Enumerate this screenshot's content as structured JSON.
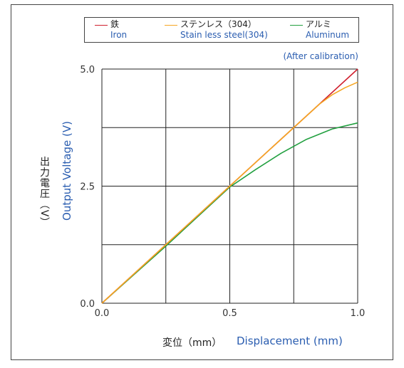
{
  "chart_data": {
    "type": "line",
    "xlabel_jp": "変位（mm）",
    "xlabel_en": "Displacement (mm)",
    "ylabel_jp": "出力電圧（V）",
    "ylabel_en": "Output Voltage (V)",
    "note": "(After calibration)",
    "xlim": [
      0.0,
      1.0
    ],
    "ylim": [
      0.0,
      5.0
    ],
    "x_ticks": [
      "0.0",
      "0.5",
      "1.0"
    ],
    "y_ticks": [
      "0.0",
      "2.5",
      "5.0"
    ],
    "grid": true,
    "legend_placement": "top",
    "series": [
      {
        "name_jp": "鉄",
        "name_en": "Iron",
        "color": "#d0202e",
        "x": [
          0.0,
          0.25,
          0.5,
          0.75,
          0.85,
          1.0
        ],
        "y": [
          0.0,
          1.25,
          2.5,
          3.75,
          4.25,
          5.0
        ]
      },
      {
        "name_jp": "ステンレス（304）",
        "name_en": "Stain less steel(304)",
        "color": "#f5a623",
        "x": [
          0.0,
          0.25,
          0.5,
          0.75,
          0.85,
          0.9,
          0.95,
          1.0
        ],
        "y": [
          0.0,
          1.25,
          2.5,
          3.75,
          4.25,
          4.45,
          4.6,
          4.72
        ]
      },
      {
        "name_jp": "アルミ",
        "name_en": "Aluminum",
        "color": "#22a040",
        "x": [
          0.0,
          0.25,
          0.5,
          0.6,
          0.7,
          0.8,
          0.9,
          1.0
        ],
        "y": [
          0.0,
          1.22,
          2.48,
          2.85,
          3.2,
          3.5,
          3.72,
          3.85
        ]
      }
    ]
  }
}
